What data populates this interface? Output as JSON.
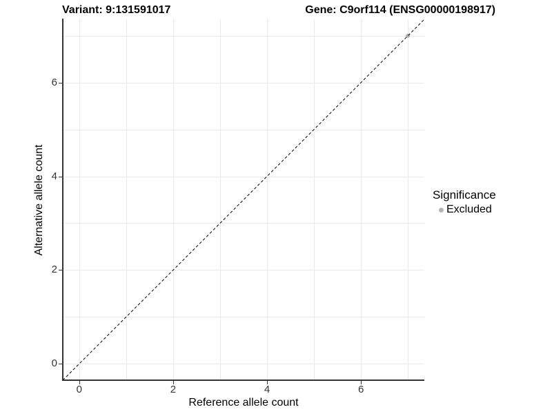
{
  "figure": {
    "title_left": "Variant: 9:131591017",
    "title_right": "Gene: C9orf114 (ENSG00000198917)"
  },
  "chart_data": {
    "type": "scatter",
    "title_left": "Variant: 9:131591017",
    "title_right": "Gene: C9orf114 (ENSG00000198917)",
    "xlabel": "Reference allele count",
    "ylabel": "Alternative allele count",
    "xlim": [
      -0.35,
      7.35
    ],
    "ylim": [
      -0.35,
      7.35
    ],
    "x_major_ticks": [
      0,
      2,
      4,
      6
    ],
    "x_minor_ticks": [
      1,
      3,
      5,
      7
    ],
    "y_major_ticks": [
      0,
      2,
      4,
      6
    ],
    "y_minor_ticks": [
      1,
      3,
      5,
      7
    ],
    "grid": true,
    "legend_position": "right",
    "reference_line": {
      "type": "identity",
      "slope": 1,
      "intercept": 0,
      "style": "dashed",
      "color": "#000000"
    },
    "series": [
      {
        "name": "Excluded",
        "color": "#b3b3b3",
        "points": [
          {
            "x": 7,
            "y": 7
          }
        ]
      }
    ],
    "legend": {
      "title": "Significance",
      "items": [
        {
          "label": "Excluded",
          "color": "#b3b3b3"
        }
      ]
    },
    "colors": {
      "grid": "#e9e9e9",
      "axis_line": "#333333",
      "tick_mark": "#333333",
      "tick_text": "#333333"
    }
  }
}
